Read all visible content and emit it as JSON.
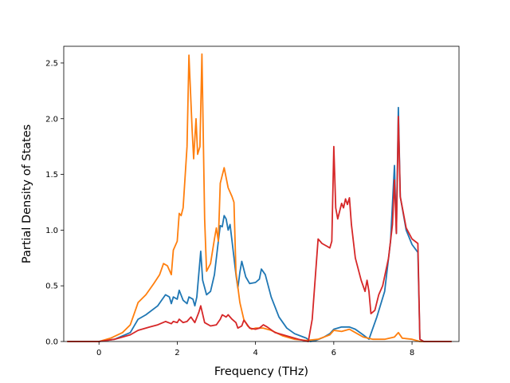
{
  "chart_data": {
    "type": "line",
    "title": "",
    "xlabel": "Frequency (THz)",
    "ylabel": "Partial Density of States",
    "xlim": [
      -0.9,
      9.2
    ],
    "ylim": [
      0,
      2.65
    ],
    "xticks": [
      0,
      2,
      4,
      6,
      8
    ],
    "yticks": [
      0.0,
      0.5,
      1.0,
      1.5,
      2.0,
      2.5
    ],
    "xtick_labels": [
      "0",
      "2",
      "4",
      "6",
      "8"
    ],
    "ytick_labels": [
      "0.0",
      "0.5",
      "1.0",
      "1.5",
      "2.0",
      "2.5"
    ],
    "grid": false,
    "series": [
      {
        "color": "#1f77b4",
        "points": [
          [
            -0.8,
            0
          ],
          [
            0,
            0
          ],
          [
            0.4,
            0.02
          ],
          [
            0.8,
            0.08
          ],
          [
            1.0,
            0.2
          ],
          [
            1.2,
            0.24
          ],
          [
            1.5,
            0.32
          ],
          [
            1.7,
            0.42
          ],
          [
            1.8,
            0.4
          ],
          [
            1.85,
            0.34
          ],
          [
            1.9,
            0.4
          ],
          [
            2.0,
            0.38
          ],
          [
            2.05,
            0.46
          ],
          [
            2.15,
            0.37
          ],
          [
            2.25,
            0.34
          ],
          [
            2.3,
            0.4
          ],
          [
            2.4,
            0.38
          ],
          [
            2.45,
            0.32
          ],
          [
            2.5,
            0.4
          ],
          [
            2.6,
            0.81
          ],
          [
            2.65,
            0.55
          ],
          [
            2.75,
            0.42
          ],
          [
            2.85,
            0.45
          ],
          [
            2.95,
            0.6
          ],
          [
            3.05,
            0.9
          ],
          [
            3.1,
            1.04
          ],
          [
            3.15,
            1.03
          ],
          [
            3.2,
            1.13
          ],
          [
            3.25,
            1.1
          ],
          [
            3.3,
            1.0
          ],
          [
            3.35,
            1.05
          ],
          [
            3.4,
            0.9
          ],
          [
            3.5,
            0.6
          ],
          [
            3.55,
            0.48
          ],
          [
            3.6,
            0.62
          ],
          [
            3.65,
            0.72
          ],
          [
            3.75,
            0.58
          ],
          [
            3.85,
            0.52
          ],
          [
            4.0,
            0.53
          ],
          [
            4.1,
            0.56
          ],
          [
            4.15,
            0.65
          ],
          [
            4.25,
            0.6
          ],
          [
            4.4,
            0.4
          ],
          [
            4.6,
            0.22
          ],
          [
            4.8,
            0.12
          ],
          [
            5.0,
            0.07
          ],
          [
            5.3,
            0.03
          ],
          [
            5.4,
            0.0
          ],
          [
            5.55,
            0.01
          ],
          [
            5.75,
            0.04
          ],
          [
            5.9,
            0.07
          ],
          [
            6.0,
            0.11
          ],
          [
            6.2,
            0.13
          ],
          [
            6.4,
            0.13
          ],
          [
            6.55,
            0.11
          ],
          [
            6.75,
            0.06
          ],
          [
            6.9,
            0.02
          ],
          [
            7.1,
            0.22
          ],
          [
            7.3,
            0.45
          ],
          [
            7.45,
            0.9
          ],
          [
            7.55,
            1.58
          ],
          [
            7.6,
            0.97
          ],
          [
            7.65,
            2.1
          ],
          [
            7.7,
            1.3
          ],
          [
            7.85,
            1.0
          ],
          [
            8.0,
            0.87
          ],
          [
            8.15,
            0.8
          ],
          [
            8.2,
            0.02
          ],
          [
            8.3,
            0
          ],
          [
            9.0,
            0
          ]
        ]
      },
      {
        "color": "#ff7f0e",
        "points": [
          [
            -0.8,
            0
          ],
          [
            0,
            0
          ],
          [
            0.3,
            0.03
          ],
          [
            0.6,
            0.08
          ],
          [
            0.8,
            0.15
          ],
          [
            0.95,
            0.3
          ],
          [
            1.0,
            0.35
          ],
          [
            1.2,
            0.42
          ],
          [
            1.4,
            0.52
          ],
          [
            1.55,
            0.6
          ],
          [
            1.65,
            0.7
          ],
          [
            1.75,
            0.68
          ],
          [
            1.85,
            0.6
          ],
          [
            1.9,
            0.82
          ],
          [
            2.0,
            0.9
          ],
          [
            2.05,
            1.15
          ],
          [
            2.1,
            1.13
          ],
          [
            2.15,
            1.2
          ],
          [
            2.25,
            1.75
          ],
          [
            2.3,
            2.57
          ],
          [
            2.38,
            1.9
          ],
          [
            2.42,
            1.64
          ],
          [
            2.48,
            2.0
          ],
          [
            2.52,
            1.68
          ],
          [
            2.58,
            1.75
          ],
          [
            2.63,
            2.58
          ],
          [
            2.7,
            1.1
          ],
          [
            2.75,
            0.63
          ],
          [
            2.85,
            0.7
          ],
          [
            2.95,
            0.92
          ],
          [
            3.0,
            1.02
          ],
          [
            3.05,
            0.9
          ],
          [
            3.1,
            1.42
          ],
          [
            3.2,
            1.56
          ],
          [
            3.3,
            1.38
          ],
          [
            3.4,
            1.3
          ],
          [
            3.45,
            1.25
          ],
          [
            3.5,
            0.62
          ],
          [
            3.6,
            0.35
          ],
          [
            3.7,
            0.2
          ],
          [
            3.8,
            0.14
          ],
          [
            3.9,
            0.11
          ],
          [
            4.0,
            0.12
          ],
          [
            4.2,
            0.12
          ],
          [
            4.4,
            0.1
          ],
          [
            4.7,
            0.05
          ],
          [
            5.0,
            0.02
          ],
          [
            5.3,
            0.01
          ],
          [
            5.6,
            0.02
          ],
          [
            5.9,
            0.06
          ],
          [
            6.0,
            0.1
          ],
          [
            6.2,
            0.09
          ],
          [
            6.4,
            0.11
          ],
          [
            6.55,
            0.08
          ],
          [
            6.75,
            0.04
          ],
          [
            7.0,
            0.02
          ],
          [
            7.3,
            0.02
          ],
          [
            7.55,
            0.04
          ],
          [
            7.65,
            0.08
          ],
          [
            7.75,
            0.03
          ],
          [
            8.0,
            0.02
          ],
          [
            8.2,
            0
          ],
          [
            9.0,
            0
          ]
        ]
      },
      {
        "color": "#d62728",
        "points": [
          [
            -0.8,
            0
          ],
          [
            0,
            0
          ],
          [
            0.4,
            0.02
          ],
          [
            0.8,
            0.06
          ],
          [
            1.0,
            0.1
          ],
          [
            1.3,
            0.13
          ],
          [
            1.5,
            0.15
          ],
          [
            1.7,
            0.18
          ],
          [
            1.85,
            0.16
          ],
          [
            1.9,
            0.18
          ],
          [
            2.0,
            0.17
          ],
          [
            2.05,
            0.2
          ],
          [
            2.15,
            0.17
          ],
          [
            2.25,
            0.18
          ],
          [
            2.35,
            0.22
          ],
          [
            2.45,
            0.17
          ],
          [
            2.55,
            0.26
          ],
          [
            2.6,
            0.32
          ],
          [
            2.7,
            0.17
          ],
          [
            2.85,
            0.14
          ],
          [
            3.0,
            0.15
          ],
          [
            3.1,
            0.2
          ],
          [
            3.15,
            0.24
          ],
          [
            3.25,
            0.22
          ],
          [
            3.3,
            0.24
          ],
          [
            3.4,
            0.2
          ],
          [
            3.5,
            0.17
          ],
          [
            3.55,
            0.12
          ],
          [
            3.65,
            0.14
          ],
          [
            3.7,
            0.19
          ],
          [
            3.75,
            0.17
          ],
          [
            3.85,
            0.12
          ],
          [
            4.0,
            0.11
          ],
          [
            4.1,
            0.12
          ],
          [
            4.2,
            0.15
          ],
          [
            4.3,
            0.13
          ],
          [
            4.5,
            0.08
          ],
          [
            4.8,
            0.05
          ],
          [
            5.1,
            0.02
          ],
          [
            5.35,
            0.0
          ],
          [
            5.45,
            0.2
          ],
          [
            5.6,
            0.92
          ],
          [
            5.7,
            0.88
          ],
          [
            5.8,
            0.86
          ],
          [
            5.9,
            0.84
          ],
          [
            5.95,
            0.9
          ],
          [
            6.0,
            1.75
          ],
          [
            6.05,
            1.2
          ],
          [
            6.1,
            1.1
          ],
          [
            6.2,
            1.24
          ],
          [
            6.25,
            1.2
          ],
          [
            6.3,
            1.28
          ],
          [
            6.35,
            1.23
          ],
          [
            6.4,
            1.29
          ],
          [
            6.45,
            1.05
          ],
          [
            6.55,
            0.75
          ],
          [
            6.7,
            0.55
          ],
          [
            6.8,
            0.45
          ],
          [
            6.85,
            0.55
          ],
          [
            6.9,
            0.45
          ],
          [
            6.95,
            0.25
          ],
          [
            7.05,
            0.28
          ],
          [
            7.15,
            0.42
          ],
          [
            7.25,
            0.5
          ],
          [
            7.4,
            0.75
          ],
          [
            7.5,
            1.05
          ],
          [
            7.55,
            1.45
          ],
          [
            7.6,
            0.97
          ],
          [
            7.65,
            2.02
          ],
          [
            7.7,
            1.3
          ],
          [
            7.85,
            1.02
          ],
          [
            8.0,
            0.92
          ],
          [
            8.15,
            0.88
          ],
          [
            8.2,
            0.02
          ],
          [
            8.3,
            0
          ],
          [
            9.0,
            0
          ]
        ]
      }
    ]
  }
}
